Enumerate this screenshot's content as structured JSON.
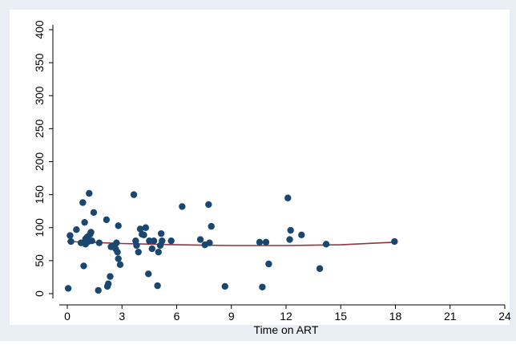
{
  "chart_data": {
    "type": "scatter",
    "title": "",
    "xlabel": "Time on ART",
    "ylabel": "",
    "xlim": [
      0,
      24
    ],
    "ylim": [
      0,
      400
    ],
    "x_ticks": [
      0,
      3,
      6,
      9,
      12,
      15,
      18,
      21,
      24
    ],
    "y_ticks": [
      0,
      50,
      100,
      150,
      200,
      250,
      300,
      350,
      400
    ],
    "grid": false,
    "legend": "none",
    "colors": {
      "background": "#e8eef3",
      "plot_area": "#ffffff",
      "points": "#1a476f",
      "fit_line": "#90353b",
      "axis": "#000000"
    },
    "series": [
      {
        "type": "scatter",
        "points": [
          [
            0.05,
            8
          ],
          [
            0.15,
            88
          ],
          [
            0.2,
            79
          ],
          [
            0.5,
            97
          ],
          [
            0.75,
            77
          ],
          [
            0.85,
            138
          ],
          [
            0.9,
            42
          ],
          [
            0.95,
            108
          ],
          [
            1.0,
            75
          ],
          [
            1.0,
            83
          ],
          [
            1.05,
            80
          ],
          [
            1.1,
            86
          ],
          [
            1.15,
            79
          ],
          [
            1.2,
            152
          ],
          [
            1.25,
            90
          ],
          [
            1.3,
            93
          ],
          [
            1.35,
            80
          ],
          [
            1.45,
            123
          ],
          [
            1.7,
            5
          ],
          [
            1.75,
            77
          ],
          [
            2.15,
            112
          ],
          [
            2.2,
            11
          ],
          [
            2.25,
            15
          ],
          [
            2.35,
            26
          ],
          [
            2.4,
            71
          ],
          [
            2.55,
            73
          ],
          [
            2.65,
            68
          ],
          [
            2.7,
            77
          ],
          [
            2.75,
            63
          ],
          [
            2.8,
            103
          ],
          [
            2.8,
            53
          ],
          [
            2.9,
            44
          ],
          [
            3.65,
            150
          ],
          [
            3.75,
            80
          ],
          [
            3.8,
            73
          ],
          [
            3.9,
            63
          ],
          [
            4.0,
            98
          ],
          [
            4.1,
            90
          ],
          [
            4.2,
            89
          ],
          [
            4.3,
            100
          ],
          [
            4.45,
            30
          ],
          [
            4.5,
            80
          ],
          [
            4.65,
            68
          ],
          [
            4.75,
            80
          ],
          [
            4.95,
            12
          ],
          [
            5.0,
            63
          ],
          [
            5.1,
            73
          ],
          [
            5.15,
            91
          ],
          [
            5.2,
            80
          ],
          [
            5.7,
            80
          ],
          [
            6.3,
            132
          ],
          [
            7.3,
            82
          ],
          [
            7.55,
            74
          ],
          [
            7.75,
            135
          ],
          [
            7.8,
            77
          ],
          [
            7.9,
            102
          ],
          [
            8.65,
            11
          ],
          [
            10.55,
            78
          ],
          [
            10.7,
            10
          ],
          [
            10.9,
            78
          ],
          [
            11.05,
            45
          ],
          [
            12.1,
            145
          ],
          [
            12.2,
            82
          ],
          [
            12.25,
            96
          ],
          [
            12.85,
            89
          ],
          [
            13.85,
            38
          ],
          [
            14.2,
            75
          ],
          [
            17.95,
            79
          ]
        ]
      },
      {
        "type": "line",
        "points": [
          [
            0,
            79
          ],
          [
            3,
            76
          ],
          [
            6,
            74
          ],
          [
            9,
            73
          ],
          [
            12,
            73
          ],
          [
            15,
            74
          ],
          [
            18,
            78
          ]
        ]
      }
    ]
  }
}
